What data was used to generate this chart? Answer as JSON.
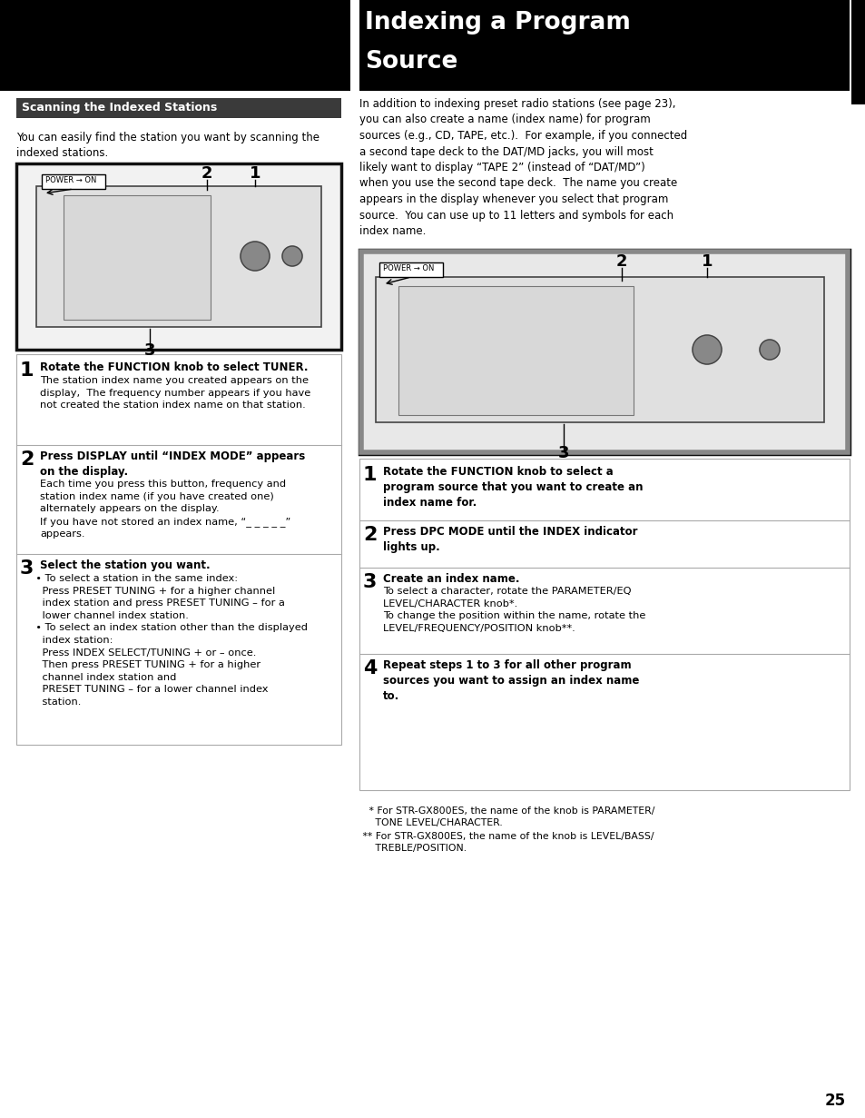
{
  "title_line1": "Indexing a Program",
  "title_line2": "Source",
  "section1_header": "Scanning the Indexed Stations",
  "section1_intro": "You can easily find the station you want by scanning the\nindexed stations.",
  "step1_left_bold": "Rotate the FUNCTION knob to select TUNER.",
  "step1_left_body": "The station index name you created appears on the\ndisplay,  The frequency number appears if you have\nnot created the station index name on that station.",
  "step2_left_bold": "Press DISPLAY until “INDEX MODE” appears\non the display.",
  "step2_left_body": "Each time you press this button, frequency and\nstation index name (if you have created one)\nalternately appears on the display.\nIf you have not stored an index name, “_ _ _ _ _”\nappears.",
  "step3_left_bold": "Select the station you want.",
  "step3_left_body": "  • To select a station in the same index:\n    Press PRESET TUNING + for a higher channel\n    index station and press PRESET TUNING – for a\n    lower channel index station.\n  • To select an index station other than the displayed\n    index station:\n    Press INDEX SELECT/TUNING + or – once.\n    Then press PRESET TUNING + for a higher\n    channel index station and\n    PRESET TUNING – for a lower channel index\n    station.",
  "right_intro": "In addition to indexing preset radio stations (see page 23),\nyou can also create a name (index name) for program\nsources (e.g., CD, TAPE, etc.).  For example, if you connected\na second tape deck to the DAT/MD jacks, you will most\nlikely want to display “TAPE 2” (instead of “DAT/MD”)\nwhen you use the second tape deck.  The name you create\nappears in the display whenever you select that program\nsource.  You can use up to 11 letters and symbols for each\nindex name.",
  "step1_right_bold": "Rotate the FUNCTION knob to select a\nprogram source that you want to create an\nindex name for.",
  "step2_right_bold": "Press DPC MODE until the INDEX indicator\nlights up.",
  "step3_right_bold": "Create an index name.",
  "step3_right_body": "To select a character, rotate the PARAMETER/EQ\nLEVEL/CHARACTER knob*.\nTo change the position within the name, rotate the\nLEVEL/FREQUENCY/POSITION knob**.",
  "step4_right_bold": "Repeat steps 1 to 3 for all other program\nsources you want to assign an index name\nto.",
  "footnote1": "   * For STR-GX800ES, the name of the knob is PARAMETER/\n     TONE LEVEL/CHARACTER.",
  "footnote2": " ** For STR-GX800ES, the name of the knob is LEVEL/BASS/\n     TREBLE/POSITION.",
  "page_num": "25",
  "bg_color": "#ffffff",
  "title_bg": "#000000",
  "title_color": "#ffffff",
  "header_bg": "#3a3a3a",
  "header_color": "#ffffff"
}
